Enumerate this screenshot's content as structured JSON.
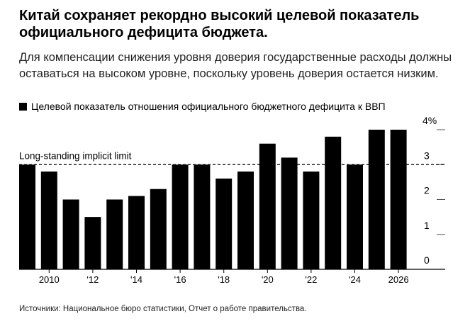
{
  "title": "Китай сохраняет рекордно высокий целевой показатель официального дефицита бюджета.",
  "subtitle": "Для компенсации снижения уровня доверия государственные расходы должны оставаться на высоком уровне, поскольку уровень доверия остается низким.",
  "source": "Источники: Национальное бюро статистики, Отчет о работе правительства.",
  "chart_data": {
    "type": "bar",
    "legend": "Целевой показатель отношения официального бюджетного дефицита к ВВП",
    "legend_position": "top-left",
    "categories": [
      2009,
      2010,
      2011,
      2012,
      2013,
      2014,
      2015,
      2016,
      2017,
      2018,
      2019,
      2020,
      2021,
      2022,
      2023,
      2024,
      2025,
      2026
    ],
    "values": [
      3.0,
      2.8,
      2.0,
      1.5,
      2.0,
      2.1,
      2.3,
      3.0,
      3.0,
      2.6,
      2.8,
      3.6,
      3.2,
      2.8,
      3.8,
      3.0,
      4.0,
      4.0
    ],
    "x_tick_labels": [
      {
        "year": 2010,
        "label": "2010"
      },
      {
        "year": 2012,
        "label": "'12"
      },
      {
        "year": 2014,
        "label": "'14"
      },
      {
        "year": 2016,
        "label": "'16"
      },
      {
        "year": 2018,
        "label": "'18"
      },
      {
        "year": 2020,
        "label": "'20"
      },
      {
        "year": 2022,
        "label": "'22"
      },
      {
        "year": 2024,
        "label": "'24"
      },
      {
        "year": 2026,
        "label": "2026"
      }
    ],
    "y_ticks": [
      {
        "value": 0,
        "label": "0"
      },
      {
        "value": 1,
        "label": "1"
      },
      {
        "value": 2,
        "label": "2"
      },
      {
        "value": 3,
        "label": "3"
      },
      {
        "value": 4,
        "label": "4%"
      }
    ],
    "ylim": [
      0,
      4
    ],
    "bar_color": "#000000",
    "reference_line": {
      "value": 3,
      "label": "Long-standing implicit limit",
      "style": "dashed"
    }
  }
}
